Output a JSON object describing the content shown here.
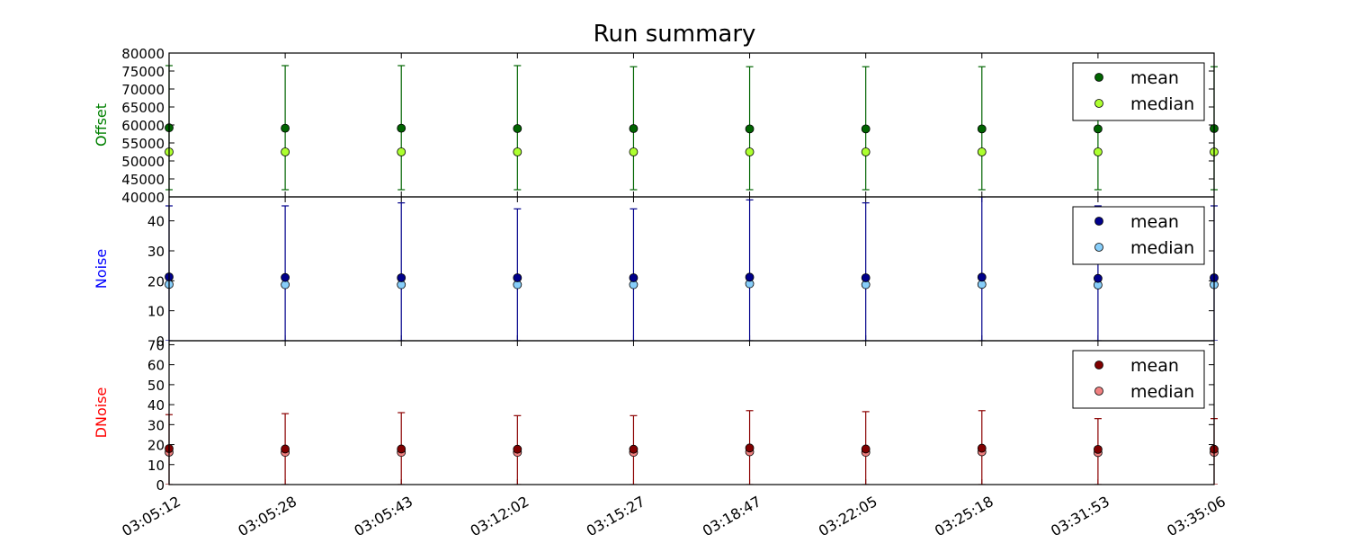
{
  "chart_data": {
    "type": "scatter",
    "title": "Run summary",
    "x_tick_labels": [
      "03:05:12",
      "03:05:28",
      "03:05:43",
      "03:12:02",
      "03:15:27",
      "03:18:47",
      "03:22:05",
      "03:25:18",
      "03:31:53",
      "03:35:06"
    ],
    "panels": [
      {
        "id": "offset",
        "ylabel": "Offset",
        "label_color": "#008000",
        "ylim": [
          40000,
          80000
        ],
        "yticks": [
          40000,
          45000,
          50000,
          55000,
          60000,
          65000,
          70000,
          75000,
          80000
        ],
        "error_color": "#006400",
        "legend_position": "top-right",
        "series": [
          {
            "name": "mean",
            "color": "#006400",
            "values": [
              59200,
              59100,
              59100,
              59000,
              59000,
              58900,
              58900,
              58900,
              58900,
              59000
            ],
            "err_low": [
              42000,
              42000,
              42000,
              42000,
              42000,
              42000,
              42000,
              42000,
              42000,
              42000
            ],
            "err_high": [
              76500,
              76500,
              76500,
              76500,
              76200,
              76200,
              76200,
              76200,
              76200,
              76200
            ]
          },
          {
            "name": "median",
            "color": "#adff2f",
            "values": [
              52500,
              52500,
              52500,
              52500,
              52500,
              52500,
              52500,
              52500,
              52500,
              52500
            ]
          }
        ]
      },
      {
        "id": "noise",
        "ylabel": "Noise",
        "label_color": "#0000ff",
        "ylim": [
          0,
          48
        ],
        "yticks": [
          0,
          10,
          20,
          30,
          40
        ],
        "error_color": "#00008b",
        "legend_position": "top-right",
        "series": [
          {
            "name": "mean",
            "color": "#00008b",
            "values": [
              21.3,
              21.1,
              21.0,
              21.0,
              21.0,
              21.2,
              21.0,
              21.2,
              20.8,
              21.0
            ],
            "err_low": [
              0,
              0,
              0,
              0,
              0,
              0,
              0,
              0,
              0,
              0
            ],
            "err_high": [
              45,
              45,
              46,
              44,
              44,
              47,
              46,
              48,
              45,
              45
            ]
          },
          {
            "name": "median",
            "color": "#87cefa",
            "values": [
              18.8,
              18.7,
              18.7,
              18.7,
              18.7,
              19.0,
              18.7,
              18.8,
              18.6,
              18.7
            ]
          }
        ]
      },
      {
        "id": "dnoise",
        "ylabel": "DNoise",
        "label_color": "#ff0000",
        "ylim": [
          0,
          72
        ],
        "yticks": [
          0,
          10,
          20,
          30,
          40,
          50,
          60,
          70
        ],
        "error_color": "#8b0000",
        "legend_position": "top-right",
        "series": [
          {
            "name": "mean",
            "color": "#800000",
            "values": [
              18.0,
              17.8,
              17.8,
              17.7,
              17.7,
              18.3,
              17.8,
              18.2,
              17.6,
              17.7
            ],
            "err_low": [
              0,
              0,
              0,
              0,
              0,
              0,
              0,
              0,
              0,
              0
            ],
            "err_high": [
              35,
              35.5,
              36,
              34.5,
              34.5,
              37,
              36.5,
              37,
              33,
              33
            ]
          },
          {
            "name": "median",
            "color": "#f08080",
            "values": [
              16.2,
              16.1,
              16.1,
              16.1,
              16.1,
              16.4,
              16.1,
              16.4,
              16.0,
              16.1
            ]
          }
        ]
      }
    ]
  }
}
